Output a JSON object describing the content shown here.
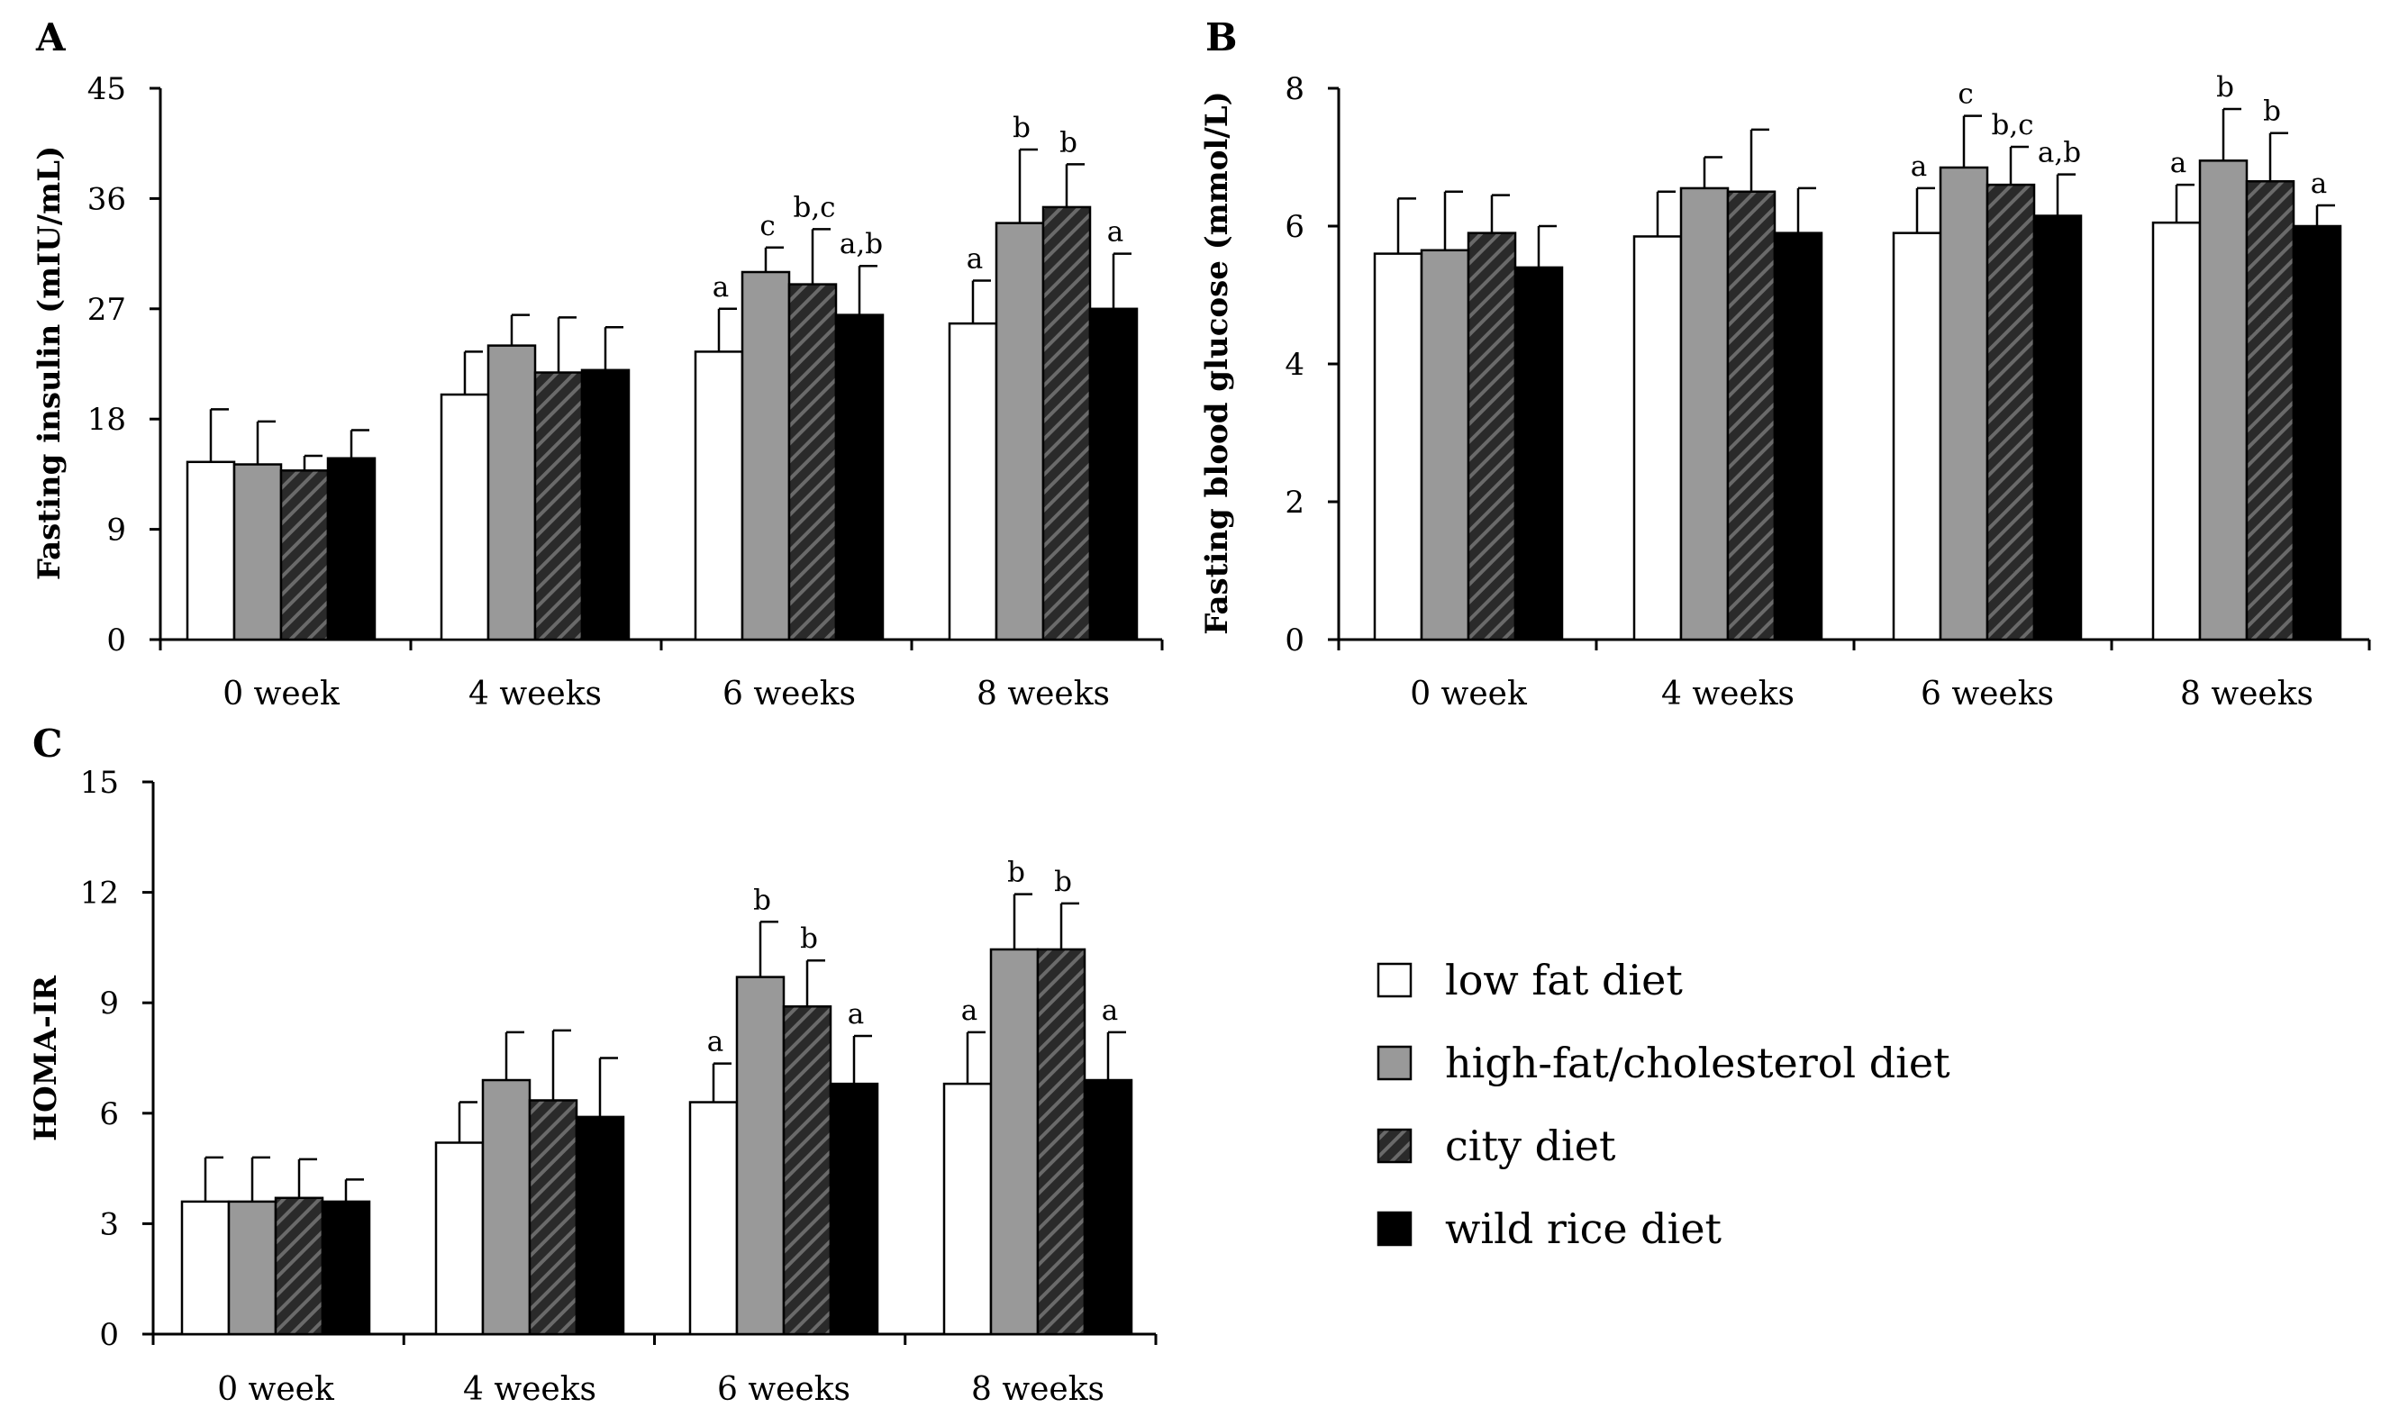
{
  "legend": [
    {
      "label": "low fat diet",
      "style": "white"
    },
    {
      "label": "high-fat/cholesterol diet",
      "style": "gray"
    },
    {
      "label": "city diet",
      "style": "hatch"
    },
    {
      "label": "wild rice diet",
      "style": "black"
    }
  ],
  "colors": {
    "white": "#ffffff",
    "gray": "#999999",
    "hatch_bg": "#2a2a2a",
    "hatch_line": "#6a6a6a",
    "black": "#000000",
    "axis": "#000000"
  },
  "chart_data": [
    {
      "panel": "A",
      "type": "bar",
      "ylabel": "Fasting insulin (mIU/mL)",
      "ylim": [
        0,
        45
      ],
      "yticks": [
        "0",
        "9",
        "18",
        "27",
        "36",
        "45"
      ],
      "categories": [
        "0 week",
        "4 weeks",
        "6 weeks",
        "8 weeks"
      ],
      "series": [
        {
          "name": "low fat diet",
          "values": [
            14.5,
            20,
            23.5,
            25.8
          ],
          "errors": [
            4.3,
            3.5,
            3.5,
            3.5
          ],
          "labels": [
            "",
            "",
            "a",
            "a"
          ]
        },
        {
          "name": "high-fat/cholesterol diet",
          "values": [
            14.3,
            24,
            30,
            34
          ],
          "errors": [
            3.5,
            2.5,
            2.0,
            6.0
          ],
          "labels": [
            "",
            "",
            "c",
            "b"
          ]
        },
        {
          "name": "city diet",
          "values": [
            13.8,
            21.8,
            29,
            35.3
          ],
          "errors": [
            1.2,
            4.5,
            4.5,
            3.5
          ],
          "labels": [
            "",
            "",
            "b,c",
            "b"
          ]
        },
        {
          "name": "wild rice diet",
          "values": [
            14.8,
            22.0,
            26.5,
            27.0
          ],
          "errors": [
            2.3,
            3.5,
            4.0,
            4.5
          ],
          "labels": [
            "",
            "",
            "a,b",
            "a"
          ]
        }
      ]
    },
    {
      "panel": "B",
      "type": "bar",
      "ylabel": "Fasting blood glucose (mmol/L)",
      "ylim": [
        0,
        8
      ],
      "yticks": [
        "0",
        "2",
        "4",
        "6",
        "8"
      ],
      "categories": [
        "0 week",
        "4 weeks",
        "6 weeks",
        "8 weeks"
      ],
      "series": [
        {
          "name": "low fat diet",
          "values": [
            5.6,
            5.85,
            5.9,
            6.05
          ],
          "errors": [
            0.8,
            0.65,
            0.65,
            0.55
          ],
          "labels": [
            "",
            "",
            "a",
            "a"
          ]
        },
        {
          "name": "high-fat/cholesterol diet",
          "values": [
            5.65,
            6.55,
            6.85,
            6.95
          ],
          "errors": [
            0.85,
            0.45,
            0.75,
            0.75
          ],
          "labels": [
            "",
            "",
            "c",
            "b"
          ]
        },
        {
          "name": "city diet",
          "values": [
            5.9,
            6.5,
            6.6,
            6.65
          ],
          "errors": [
            0.55,
            0.9,
            0.55,
            0.7
          ],
          "labels": [
            "",
            "",
            "b,c",
            "b"
          ]
        },
        {
          "name": "wild rice diet",
          "values": [
            5.4,
            5.9,
            6.15,
            6.0
          ],
          "errors": [
            0.6,
            0.65,
            0.6,
            0.3
          ],
          "labels": [
            "",
            "",
            "a,b",
            "a"
          ]
        }
      ]
    },
    {
      "panel": "C",
      "type": "bar",
      "ylabel": "HOMA-IR",
      "ylim": [
        0,
        15
      ],
      "yticks": [
        "0",
        "3",
        "6",
        "9",
        "12",
        "15"
      ],
      "categories": [
        "0 week",
        "4 weeks",
        "6 weeks",
        "8 weeks"
      ],
      "series": [
        {
          "name": "low fat diet",
          "values": [
            3.6,
            5.2,
            6.3,
            6.8
          ],
          "errors": [
            1.2,
            1.1,
            1.05,
            1.4
          ],
          "labels": [
            "",
            "",
            "a",
            "a"
          ]
        },
        {
          "name": "high-fat/cholesterol diet",
          "values": [
            3.6,
            6.9,
            9.7,
            10.45
          ],
          "errors": [
            1.2,
            1.3,
            1.5,
            1.5
          ],
          "labels": [
            "",
            "",
            "b",
            "b"
          ]
        },
        {
          "name": "city diet",
          "values": [
            3.7,
            6.35,
            8.9,
            10.45
          ],
          "errors": [
            1.05,
            1.9,
            1.25,
            1.25
          ],
          "labels": [
            "",
            "",
            "b",
            "b"
          ]
        },
        {
          "name": "wild rice diet",
          "values": [
            3.6,
            5.9,
            6.8,
            6.9
          ],
          "errors": [
            0.6,
            1.6,
            1.3,
            1.3
          ],
          "labels": [
            "",
            "",
            "a",
            "a"
          ]
        }
      ]
    }
  ]
}
